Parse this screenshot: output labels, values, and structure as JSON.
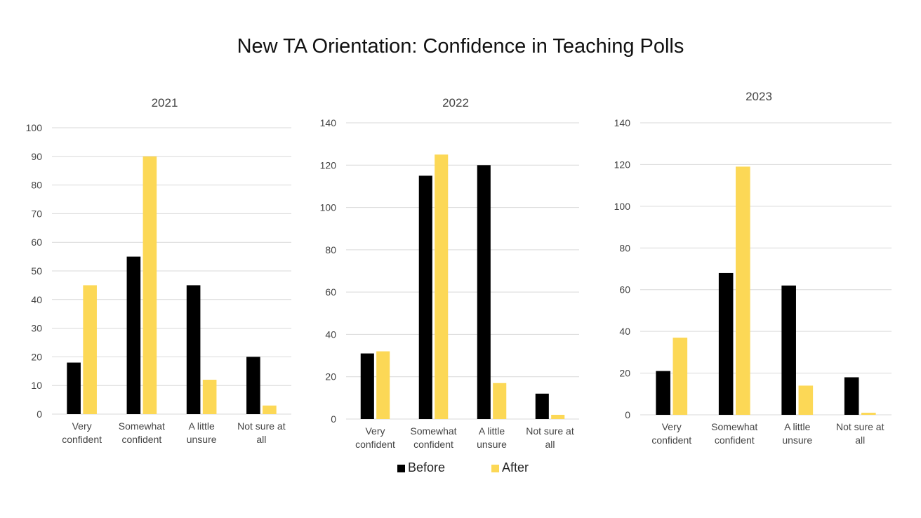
{
  "page": {
    "title": "New TA Orientation: Confidence in Teaching Polls"
  },
  "legend": {
    "before_label": "Before",
    "after_label": "After",
    "before_color": "#000000",
    "after_color": "#FCD856"
  },
  "chart_data": [
    {
      "type": "bar",
      "title": "2021",
      "categories": [
        "Very confident",
        "Somewhat confident",
        "A little unsure",
        "Not sure at all"
      ],
      "category_lines": [
        [
          "Very",
          "confident"
        ],
        [
          "Somewhat",
          "confident"
        ],
        [
          "A little",
          "unsure"
        ],
        [
          "Not sure at",
          "all"
        ]
      ],
      "series": [
        {
          "name": "Before",
          "values": [
            18,
            55,
            45,
            20
          ]
        },
        {
          "name": "After",
          "values": [
            45,
            90,
            12,
            3
          ]
        }
      ],
      "ylim": [
        0,
        100
      ],
      "yticks": [
        0,
        10,
        20,
        30,
        40,
        50,
        60,
        70,
        80,
        90,
        100
      ],
      "grid": true,
      "legend": "bottom"
    },
    {
      "type": "bar",
      "title": "2022",
      "categories": [
        "Very confident",
        "Somewhat confident",
        "A little unsure",
        "Not sure at all"
      ],
      "category_lines": [
        [
          "Very",
          "confident"
        ],
        [
          "Somewhat",
          "confident"
        ],
        [
          "A little",
          "unsure"
        ],
        [
          "Not sure at",
          "all"
        ]
      ],
      "series": [
        {
          "name": "Before",
          "values": [
            31,
            115,
            120,
            12
          ]
        },
        {
          "name": "After",
          "values": [
            32,
            125,
            17,
            2
          ]
        }
      ],
      "ylim": [
        0,
        140
      ],
      "yticks": [
        0,
        20,
        40,
        60,
        80,
        100,
        120,
        140
      ],
      "grid": true,
      "legend": "bottom"
    },
    {
      "type": "bar",
      "title": "2023",
      "categories": [
        "Very confident",
        "Somewhat confident",
        "A little unsure",
        "Not sure at all"
      ],
      "category_lines": [
        [
          "Very",
          "confident"
        ],
        [
          "Somewhat",
          "confident"
        ],
        [
          "A little",
          "unsure"
        ],
        [
          "Not sure at",
          "all"
        ]
      ],
      "series": [
        {
          "name": "Before",
          "values": [
            21,
            68,
            62,
            18
          ]
        },
        {
          "name": "After",
          "values": [
            37,
            119,
            14,
            1
          ]
        }
      ],
      "ylim": [
        0,
        140
      ],
      "yticks": [
        0,
        20,
        40,
        60,
        80,
        100,
        120,
        140
      ],
      "grid": true,
      "legend": "bottom"
    }
  ]
}
